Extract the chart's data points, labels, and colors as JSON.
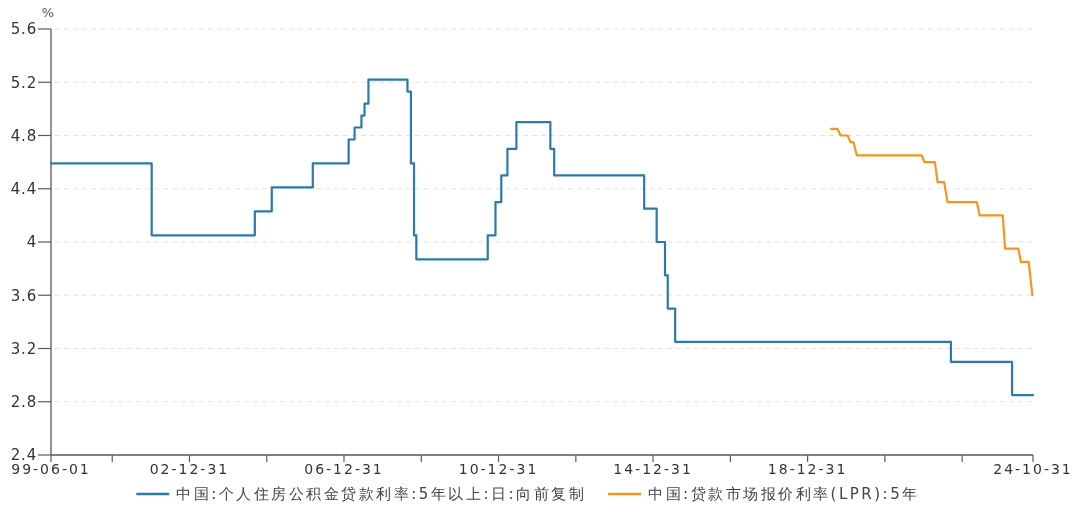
{
  "chart_data": {
    "type": "line",
    "ylabel": "%",
    "xlim": [
      "1999-06-01",
      "2024-10-31"
    ],
    "xticks": [
      {
        "value": "1999-06-01",
        "label": "99-06-01"
      },
      {
        "value": "2000-12-31",
        "label": null
      },
      {
        "value": "2002-12-31",
        "label": "02-12-31"
      },
      {
        "value": "2004-12-31",
        "label": null
      },
      {
        "value": "2006-12-31",
        "label": "06-12-31"
      },
      {
        "value": "2008-12-31",
        "label": null
      },
      {
        "value": "2010-12-31",
        "label": "10-12-31"
      },
      {
        "value": "2012-12-31",
        "label": null
      },
      {
        "value": "2014-12-31",
        "label": "14-12-31"
      },
      {
        "value": "2016-12-31",
        "label": null
      },
      {
        "value": "2018-12-31",
        "label": "18-12-31"
      },
      {
        "value": "2020-12-31",
        "label": null
      },
      {
        "value": "2022-12-31",
        "label": null
      },
      {
        "value": "2024-10-31",
        "label": "24-10-31"
      }
    ],
    "ylim": [
      2.4,
      5.6
    ],
    "yticks": [
      2.4,
      2.8,
      3.2,
      3.6,
      4,
      4.4,
      4.8,
      5.2,
      5.6
    ],
    "grid": "y",
    "legend": "bottom",
    "series": [
      {
        "name": "中国:个人住房公积金贷款利率:5年以上:日:向前复制",
        "type": "step",
        "color": "#2b7aab",
        "x": [
          "1999-06-01",
          "2002-01-08",
          "2004-09-09",
          "2005-02-16",
          "2006-03-11",
          "2007-02-13",
          "2007-04-10",
          "2007-06-14",
          "2007-07-13",
          "2007-08-19",
          "2008-08-22",
          "2008-09-24",
          "2008-10-23",
          "2008-11-14",
          "2010-09-20",
          "2010-12-02",
          "2011-01-26",
          "2011-03-25",
          "2011-06-18",
          "2012-05-04",
          "2012-06-09",
          "2014-10-08",
          "2015-02-03",
          "2015-04-23",
          "2015-05-19",
          "2015-07-28",
          "2022-09-16",
          "2024-04-16",
          "2024-10-31"
        ],
        "values": [
          4.59,
          4.05,
          4.23,
          4.41,
          4.59,
          4.77,
          4.86,
          4.95,
          5.04,
          5.22,
          5.13,
          4.59,
          4.05,
          3.87,
          4.05,
          4.3,
          4.5,
          4.7,
          4.9,
          4.7,
          4.5,
          4.25,
          4,
          3.75,
          3.5,
          3.25,
          3.1,
          2.85,
          2.85
        ]
      },
      {
        "name": "中国:贷款市场报价利率(LPR):5年",
        "color": "#f7941e",
        "x": [
          "2019-08-10",
          "2019-10-08",
          "2019-11-09",
          "2020-01-14",
          "2020-02-09",
          "2020-03-09",
          "2020-04-10",
          "2021-12-14",
          "2022-01-09",
          "2022-04-17",
          "2022-05-13",
          "2022-07-14",
          "2022-08-15",
          "2023-05-19",
          "2023-06-14",
          "2024-01-19",
          "2024-02-10",
          "2024-06-14",
          "2024-07-09",
          "2024-09-20",
          "2024-10-25"
        ],
        "values": [
          4.85,
          4.85,
          4.8,
          4.8,
          4.75,
          4.75,
          4.65,
          4.65,
          4.6,
          4.6,
          4.45,
          4.45,
          4.3,
          4.3,
          4.2,
          4.2,
          3.95,
          3.95,
          3.85,
          3.85,
          3.6
        ]
      }
    ]
  }
}
